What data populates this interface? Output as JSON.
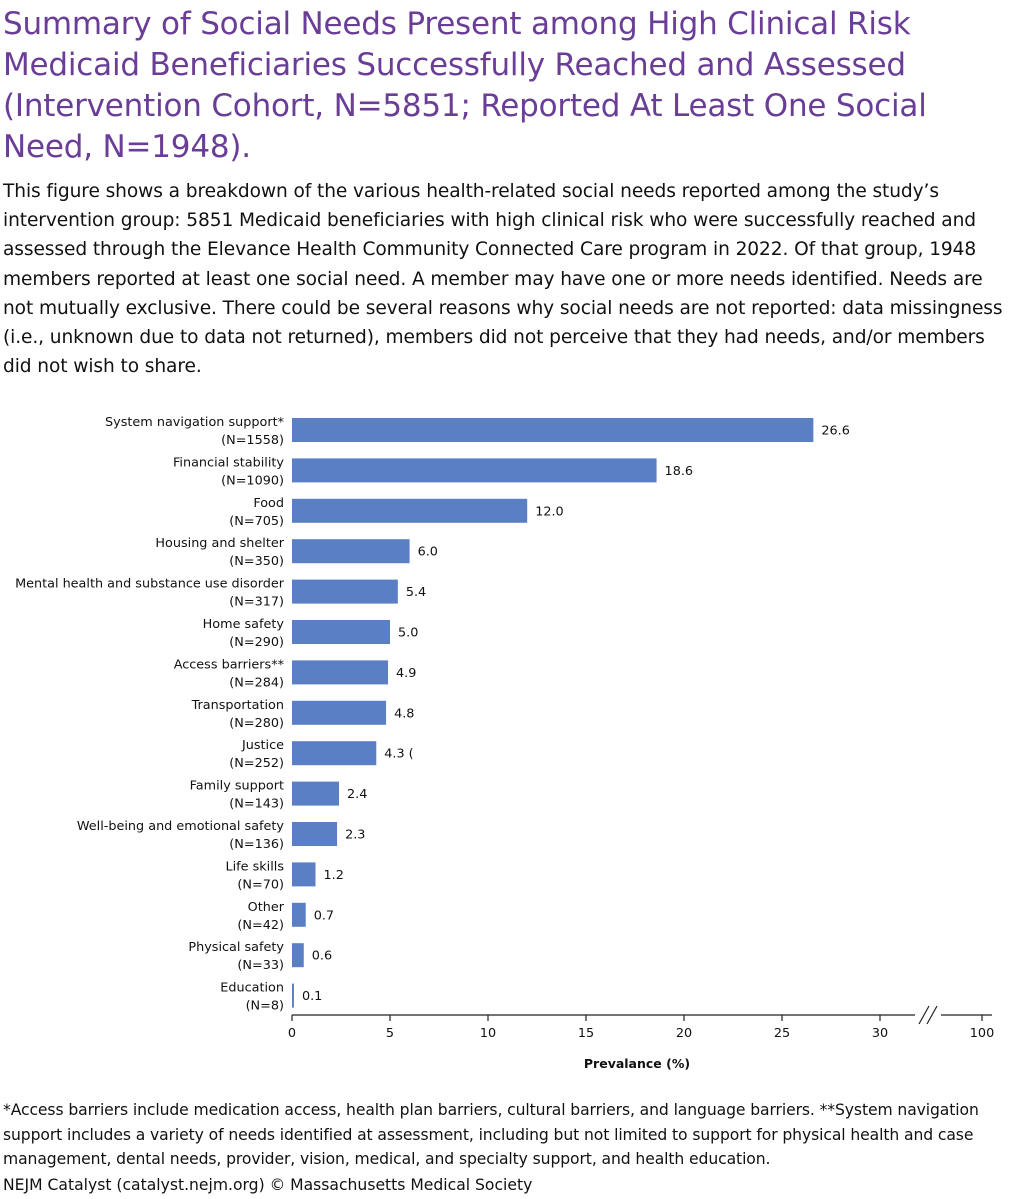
{
  "title": "Summary of Social Needs Present among High Clinical Risk Medicaid Beneficiaries Successfully Reached and Assessed (Intervention Cohort, N=5851; Reported At Least One Social Need, N=1948).",
  "description": "This figure shows a breakdown of the various health-related social needs reported among the study’s intervention group: 5851 Medicaid beneficiaries with high clinical risk who were successfully reached and assessed through the Elevance Health Community Connected Care program in 2022. Of that group, 1948 members reported at least one social need. A member may have one or more needs identified. Needs are not mutually exclusive. There could be several reasons why social needs are not reported: data missingness (i.e., unknown due to data not returned), members did not perceive that they had needs, and/or members did not wish to share.",
  "footnote": "*Access barriers include medication access, health plan barriers, cultural barriers, and language barriers. **System navigation support includes a variety of needs identified at assessment, including but not limited to support for physical health and case management, dental needs, provider, vision, medical, and specialty support, and health education.",
  "source": "NEJM Catalyst (catalyst.nejm.org) © Massachusetts Medical Society",
  "colors": {
    "bar": "#5b7fc4",
    "title": "#6a3d97",
    "axis": "#222222"
  },
  "chart_data": {
    "type": "bar",
    "orientation": "horizontal",
    "xlabel": "Prevalance (%)",
    "ylabel": "",
    "xlim": [
      0,
      100
    ],
    "axis_break": "between 30 and 100",
    "xticks": [
      "0",
      "5",
      "10",
      "15",
      "20",
      "25",
      "30",
      "100"
    ],
    "grid": false,
    "categories": [
      {
        "name": "System navigation support*",
        "n": "(N=1558)"
      },
      {
        "name": "Financial stability",
        "n": "(N=1090)"
      },
      {
        "name": "Food",
        "n": "(N=705)"
      },
      {
        "name": "Housing and shelter",
        "n": "(N=350)"
      },
      {
        "name": "Mental health and substance use disorder",
        "n": "(N=317)"
      },
      {
        "name": "Home safety",
        "n": "(N=290)"
      },
      {
        "name": "Access barriers**",
        "n": "(N=284)"
      },
      {
        "name": "Transportation",
        "n": "(N=280)"
      },
      {
        "name": "Justice",
        "n": "(N=252)"
      },
      {
        "name": "Family support",
        "n": "(N=143)"
      },
      {
        "name": "Well-being and emotional safety",
        "n": "(N=136)"
      },
      {
        "name": "Life skills",
        "n": "(N=70)"
      },
      {
        "name": "Other",
        "n": "(N=42)"
      },
      {
        "name": "Physical safety",
        "n": "(N=33)"
      },
      {
        "name": "Education",
        "n": "(N=8)"
      }
    ],
    "values": [
      26.6,
      18.6,
      12.0,
      6.0,
      5.4,
      5.0,
      4.9,
      4.8,
      4.3,
      2.4,
      2.3,
      1.2,
      0.7,
      0.6,
      0.1
    ],
    "value_labels": [
      "26.6",
      "18.6",
      "12.0",
      "6.0",
      "5.4",
      "5.0",
      "4.9",
      "4.8",
      "4.3 (",
      "2.4",
      "2.3",
      "1.2",
      "0.7",
      "0.6",
      "0.1"
    ]
  }
}
